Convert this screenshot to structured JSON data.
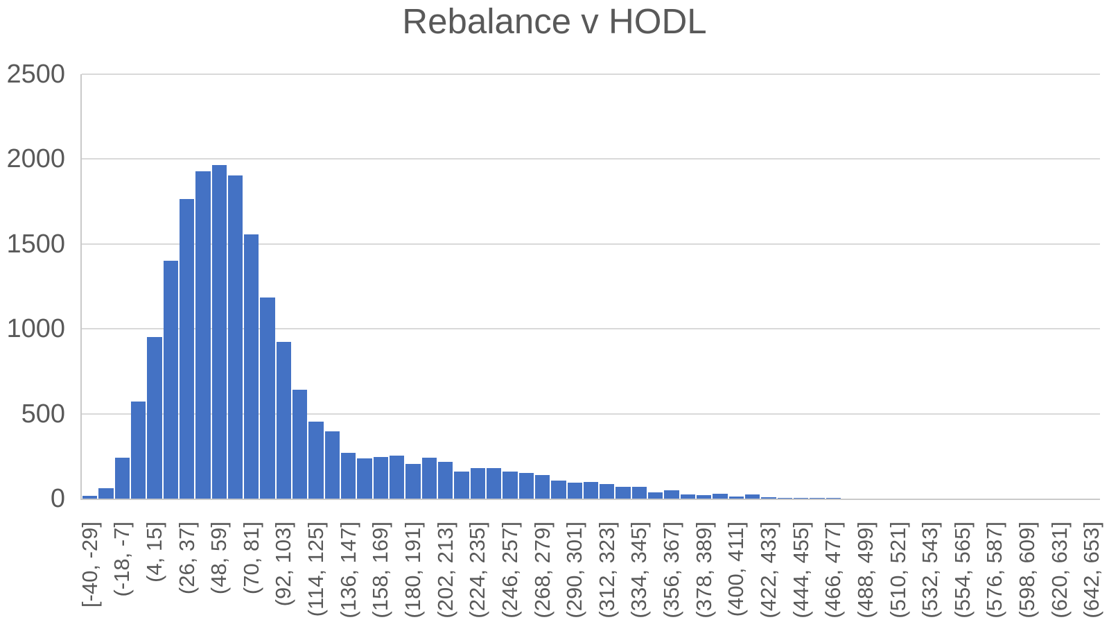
{
  "title": "Rebalance v HODL",
  "colors": {
    "bar": "#4472C4",
    "gridline": "#D9D9D9",
    "axis_line": "#C9C9C9",
    "text": "#595959"
  },
  "chart_data": {
    "type": "bar",
    "title": "Rebalance v HODL",
    "xlabel": "",
    "ylabel": "",
    "ylim": [
      0,
      2500
    ],
    "y_ticks": [
      0,
      500,
      1000,
      1500,
      2000,
      2500
    ],
    "grid": "horizontal",
    "legend": "none",
    "bin_width": 11,
    "ticks_every_n_bars": 2,
    "x_tick_labels": [
      "[-40, -29]",
      "(-18, -7]",
      "(4, 15]",
      "(26, 37]",
      "(48, 59]",
      "(70, 81]",
      "(92, 103]",
      "(114, 125]",
      "(136, 147]",
      "(158, 169]",
      "(180, 191]",
      "(202, 213]",
      "(224, 235]",
      "(246, 257]",
      "(268, 279]",
      "(290, 301]",
      "(312, 323]",
      "(334, 345]",
      "(356, 367]",
      "(378, 389]",
      "(400, 411]",
      "(422, 433]",
      "(444, 455]",
      "(466, 477]",
      "(488, 499]",
      "(510, 521]",
      "(532, 543]",
      "(554, 565]",
      "(576, 587]",
      "(598, 609]",
      "(620, 631]",
      "(642, 653]"
    ],
    "values": [
      15,
      60,
      240,
      570,
      950,
      1400,
      1765,
      1930,
      1965,
      1905,
      1555,
      1185,
      925,
      640,
      455,
      395,
      270,
      238,
      246,
      252,
      203,
      240,
      218,
      160,
      178,
      178,
      158,
      150,
      140,
      105,
      92,
      100,
      86,
      70,
      70,
      36,
      50,
      26,
      22,
      30,
      14,
      24,
      10,
      4,
      4,
      4,
      2,
      0,
      0,
      0,
      0,
      0,
      0,
      0,
      0,
      0,
      0,
      0,
      0,
      0,
      0,
      0,
      0
    ]
  }
}
